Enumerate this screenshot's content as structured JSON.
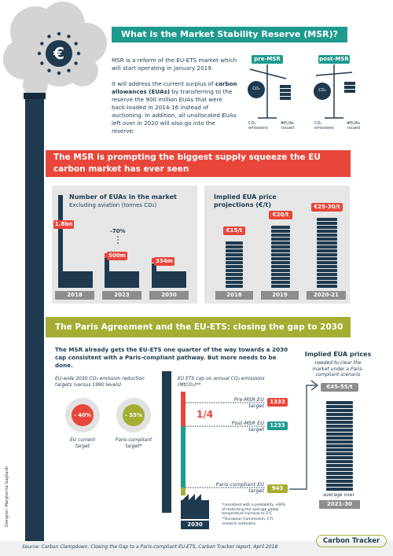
{
  "designer": "Designer: Margherita Gagliardi",
  "section1": {
    "title": "What is the Market Stability Reserve (MSR)?",
    "paragraph1": "MSR is a reform of the EU-ETS market which will start operating in January 2019.",
    "paragraph2_parts": [
      "It will address the current surplus of ",
      "carbon allowances (EUAs)",
      " by transferring to the reserve the 900 million EUAs that were back-loaded in 2014-16 instead of auctioning. In addition, all unallocated EUAs left over in 2020 will also go into the reserve."
    ],
    "scales": [
      {
        "label": "pre-MSR",
        "pan": "CO₂",
        "left": "CO₂ emissions",
        "right": "#EUAs issued"
      },
      {
        "label": "post-MSR",
        "pan": "CO₂",
        "left": "CO₂ emissions",
        "right": "#EUAs issued"
      }
    ]
  },
  "section2": {
    "title": "The MSR is prompting the biggest supply squeeze the EU carbon market has ever seen",
    "euas": {
      "title": "Number of EUAs in the market",
      "subtitle": "Excluding aviation (tonnes CO₂)",
      "change": "-70%",
      "bars": [
        {
          "year": "2018",
          "label": "1.8bn"
        },
        {
          "year": "2023",
          "label": "500m"
        },
        {
          "year": "2030",
          "label": "334m"
        }
      ]
    },
    "prices": {
      "title": "Implied EUA price projections (€/t)",
      "bars": [
        {
          "year": "2018",
          "label": "€15/t"
        },
        {
          "year": "2019",
          "label": "€20/t"
        },
        {
          "year": "2020-21",
          "label": "€25-30/t"
        }
      ]
    }
  },
  "section3": {
    "title": "The Paris Agreement and the EU-ETS: closing the gap to 2030",
    "paragraph": "The MSR already gets the EU-ETS one quarter of the way towards a 2030 cap consistent with a Paris-compliant pathway. But more needs to be done.",
    "reduction_title": "EU-wide 2030 CO₂ emission reduction targets (versus 1990 levels)",
    "targets": [
      {
        "value": "- 40%",
        "label": "EU current target"
      },
      {
        "value": "- 55%",
        "label": "Paris-compliant target*"
      }
    ],
    "cap": {
      "title": "EU ETS cap on annual CO₂ emissions (MtCO₂)**",
      "fraction": "1/4",
      "year": "2030",
      "rows": [
        {
          "label": "Pre-MSR EU target",
          "value": "1333"
        },
        {
          "label": "Post-MSR EU target",
          "value": "1233"
        },
        {
          "label": "Paris-compliant EU target",
          "value": "943"
        }
      ],
      "footnotes": [
        "*consistent with a probability >66% of restricting the average global temperature increase to 2°C",
        "**European Commission, CTI research estimates"
      ]
    },
    "implied": {
      "title": "Implied EUA prices",
      "subtitle": "needed to clear the market under a Paris-compliant scenario",
      "price": "€45-55/t",
      "note": "average over",
      "period": "2021-30"
    }
  },
  "source": "Source: Carbon Clampdown. Closing the Gap to a Paris-compliant EU-ETS, Carbon Tracker report, April 2018",
  "logo": "Carbon Tracker"
}
